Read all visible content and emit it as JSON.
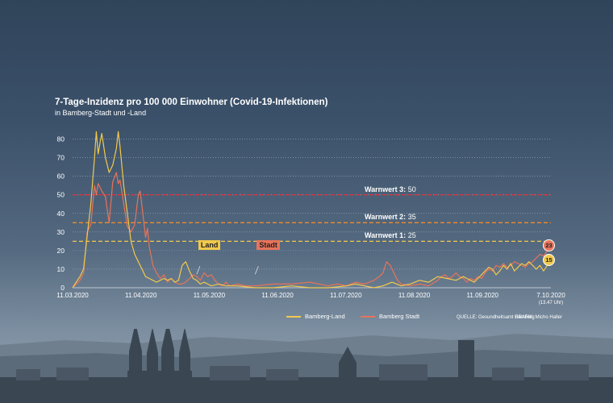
{
  "chart_data": {
    "type": "line",
    "title": "7-Tage-Inzidenz pro 100 000 Einwohner (Covid-19-Infektionen)",
    "subtitle": "in Bamberg-Stadt und -Land",
    "x_ticks": [
      "11.03.2020",
      "11.04.2020",
      "11.05.2020",
      "11.06.2020",
      "11.07.2020",
      "11.08.2020",
      "11.09.2020",
      "7.10.2020"
    ],
    "x_tick_note": "(13.47 Uhr)",
    "y_ticks": [
      "0",
      "10",
      "20",
      "30",
      "40",
      "50",
      "60",
      "70",
      "80"
    ],
    "ylim": [
      0,
      85
    ],
    "grid": true,
    "series": [
      {
        "name": "Bamberg-Land",
        "color": "#f2c94c",
        "points": [
          [
            0,
            0
          ],
          [
            2,
            3
          ],
          [
            4,
            6
          ],
          [
            6,
            10
          ],
          [
            8,
            28
          ],
          [
            10,
            45
          ],
          [
            12,
            70
          ],
          [
            13,
            84
          ],
          [
            14,
            72
          ],
          [
            15,
            78
          ],
          [
            16,
            83
          ],
          [
            18,
            70
          ],
          [
            20,
            62
          ],
          [
            22,
            66
          ],
          [
            24,
            75
          ],
          [
            25,
            84
          ],
          [
            26,
            76
          ],
          [
            28,
            55
          ],
          [
            30,
            40
          ],
          [
            32,
            25
          ],
          [
            34,
            18
          ],
          [
            36,
            14
          ],
          [
            38,
            10
          ],
          [
            40,
            6
          ],
          [
            42,
            5
          ],
          [
            44,
            4
          ],
          [
            46,
            3
          ],
          [
            48,
            4
          ],
          [
            50,
            5
          ],
          [
            52,
            4
          ],
          [
            54,
            5
          ],
          [
            56,
            3
          ],
          [
            58,
            4
          ],
          [
            60,
            12
          ],
          [
            62,
            14
          ],
          [
            64,
            9
          ],
          [
            66,
            5
          ],
          [
            68,
            4
          ],
          [
            70,
            2
          ],
          [
            72,
            3
          ],
          [
            74,
            2
          ],
          [
            76,
            1
          ],
          [
            80,
            2
          ],
          [
            84,
            1
          ],
          [
            90,
            1
          ],
          [
            100,
            0
          ],
          [
            110,
            0
          ],
          [
            120,
            1
          ],
          [
            130,
            0
          ],
          [
            140,
            0
          ],
          [
            150,
            1
          ],
          [
            155,
            2
          ],
          [
            160,
            1
          ],
          [
            165,
            0
          ],
          [
            170,
            1
          ],
          [
            175,
            3
          ],
          [
            180,
            1
          ],
          [
            185,
            2
          ],
          [
            190,
            4
          ],
          [
            195,
            3
          ],
          [
            200,
            6
          ],
          [
            205,
            5
          ],
          [
            210,
            4
          ],
          [
            212,
            5
          ],
          [
            214,
            6
          ],
          [
            216,
            5
          ],
          [
            218,
            4
          ],
          [
            220,
            3
          ],
          [
            222,
            5
          ],
          [
            224,
            7
          ],
          [
            226,
            9
          ],
          [
            228,
            11
          ],
          [
            230,
            10
          ],
          [
            232,
            7
          ],
          [
            234,
            9
          ],
          [
            236,
            12
          ],
          [
            238,
            10
          ],
          [
            240,
            13
          ],
          [
            242,
            9
          ],
          [
            244,
            11
          ],
          [
            246,
            13
          ],
          [
            248,
            12
          ],
          [
            250,
            14
          ],
          [
            252,
            12
          ],
          [
            254,
            10
          ],
          [
            256,
            12
          ],
          [
            258,
            9
          ],
          [
            260,
            12
          ],
          [
            262,
            15
          ]
        ]
      },
      {
        "name": "Bamberg Stadt",
        "color": "#e8735a",
        "points": [
          [
            0,
            0
          ],
          [
            2,
            2
          ],
          [
            4,
            4
          ],
          [
            6,
            8
          ],
          [
            8,
            30
          ],
          [
            10,
            34
          ],
          [
            12,
            55
          ],
          [
            13,
            50
          ],
          [
            14,
            56
          ],
          [
            16,
            52
          ],
          [
            18,
            49
          ],
          [
            20,
            35
          ],
          [
            22,
            57
          ],
          [
            24,
            62
          ],
          [
            25,
            56
          ],
          [
            26,
            58
          ],
          [
            28,
            45
          ],
          [
            30,
            33
          ],
          [
            32,
            30
          ],
          [
            34,
            34
          ],
          [
            36,
            50
          ],
          [
            37,
            52
          ],
          [
            38,
            44
          ],
          [
            40,
            27
          ],
          [
            41,
            32
          ],
          [
            42,
            22
          ],
          [
            44,
            12
          ],
          [
            46,
            8
          ],
          [
            48,
            5
          ],
          [
            50,
            7
          ],
          [
            52,
            3
          ],
          [
            54,
            5
          ],
          [
            56,
            3
          ],
          [
            58,
            2
          ],
          [
            60,
            2
          ],
          [
            62,
            3
          ],
          [
            64,
            5
          ],
          [
            66,
            7
          ],
          [
            68,
            6
          ],
          [
            70,
            4
          ],
          [
            72,
            8
          ],
          [
            74,
            6
          ],
          [
            76,
            7
          ],
          [
            78,
            4
          ],
          [
            80,
            2
          ],
          [
            82,
            1
          ],
          [
            84,
            3
          ],
          [
            86,
            1
          ],
          [
            90,
            2
          ],
          [
            95,
            1
          ],
          [
            100,
            1
          ],
          [
            110,
            2
          ],
          [
            120,
            2
          ],
          [
            130,
            3
          ],
          [
            140,
            1
          ],
          [
            145,
            2
          ],
          [
            150,
            1
          ],
          [
            155,
            3
          ],
          [
            160,
            2
          ],
          [
            165,
            4
          ],
          [
            168,
            6
          ],
          [
            170,
            8
          ],
          [
            172,
            14
          ],
          [
            174,
            12
          ],
          [
            176,
            8
          ],
          [
            178,
            4
          ],
          [
            180,
            2
          ],
          [
            185,
            1
          ],
          [
            190,
            2
          ],
          [
            195,
            1
          ],
          [
            200,
            4
          ],
          [
            202,
            6
          ],
          [
            204,
            7
          ],
          [
            206,
            5
          ],
          [
            208,
            6
          ],
          [
            210,
            8
          ],
          [
            212,
            6
          ],
          [
            214,
            5
          ],
          [
            216,
            3
          ],
          [
            218,
            5
          ],
          [
            220,
            4
          ],
          [
            222,
            6
          ],
          [
            224,
            5
          ],
          [
            226,
            8
          ],
          [
            228,
            10
          ],
          [
            230,
            9
          ],
          [
            232,
            12
          ],
          [
            234,
            11
          ],
          [
            236,
            13
          ],
          [
            238,
            11
          ],
          [
            240,
            12
          ],
          [
            242,
            14
          ],
          [
            244,
            13
          ],
          [
            246,
            12
          ],
          [
            248,
            11
          ],
          [
            250,
            13
          ],
          [
            252,
            14
          ],
          [
            254,
            16
          ],
          [
            256,
            18
          ],
          [
            258,
            17
          ],
          [
            260,
            20
          ],
          [
            262,
            23
          ]
        ]
      }
    ],
    "thresholds": [
      {
        "label": "Warnwert 3:",
        "value_label": "50",
        "value": 50,
        "color": "#e0303a"
      },
      {
        "label": "Warnwert 2:",
        "value_label": "35",
        "value": 35,
        "color": "#f08a2a"
      },
      {
        "label": "Warnwert 1:",
        "value_label": "25",
        "value": 25,
        "color": "#f2c94c"
      }
    ],
    "annotations": [
      {
        "text": "Land",
        "x": 68,
        "y": 9,
        "color": "#f2c94c"
      },
      {
        "text": "Stadt",
        "x": 100,
        "y": 9,
        "color": "#e8735a"
      }
    ],
    "end_labels": [
      {
        "text": "23",
        "value": 23,
        "color": "#e8735a"
      },
      {
        "text": "15",
        "value": 15,
        "color": "#f2c94c"
      }
    ]
  },
  "legend": {
    "land": "Bamberg-Land",
    "stadt": "Bamberg Stadt"
  },
  "source": "QUELLE: Gesundheitsamt Bamberg",
  "credit": "GRAFIK: Micho Haller"
}
